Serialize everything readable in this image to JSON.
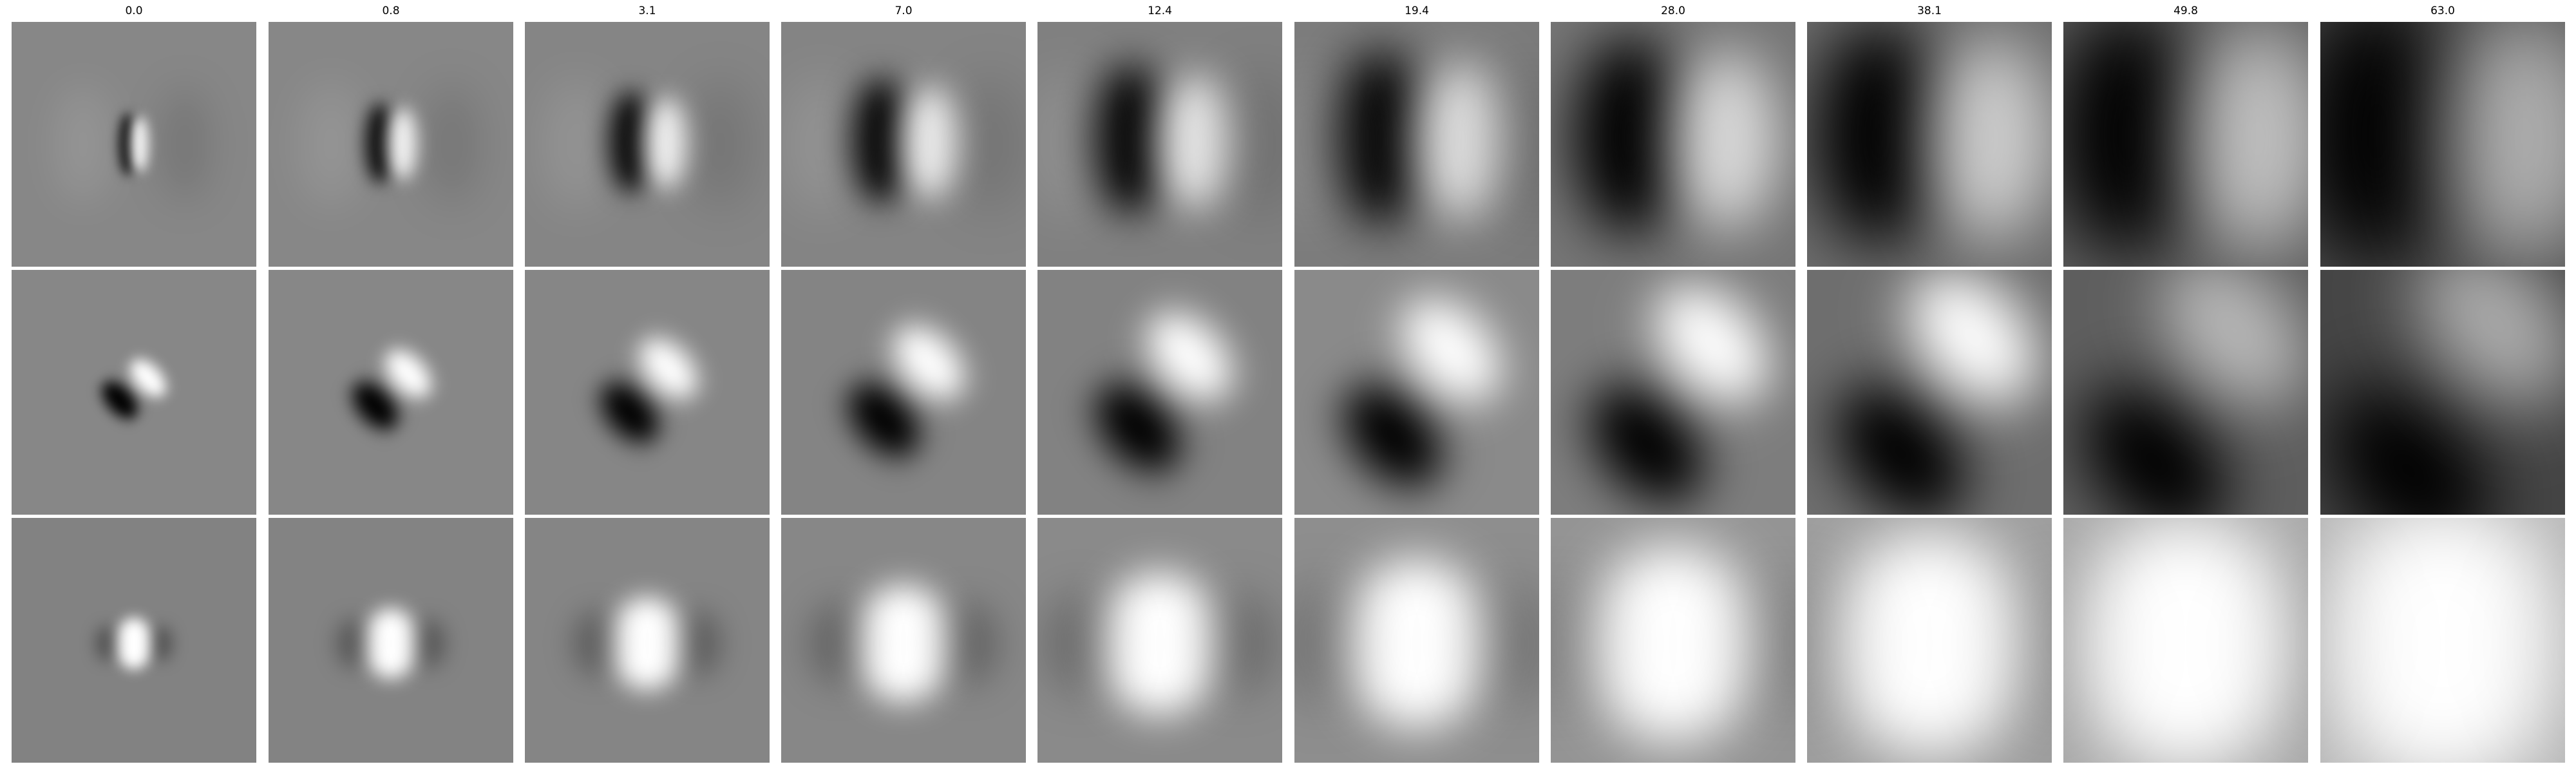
{
  "figure": {
    "column_titles": [
      "0.0",
      "0.8",
      "3.1",
      "7.0",
      "12.4",
      "19.4",
      "28.0",
      "38.1",
      "49.8",
      "63.0"
    ],
    "rows": [
      {
        "pattern": "vertical-dipole",
        "panels": [
          {
            "title": "0.0",
            "background": "#878787"
          },
          {
            "title": "0.8",
            "background": "#878787"
          },
          {
            "title": "3.1",
            "background": "#858585"
          },
          {
            "title": "7.0",
            "background": "#848484"
          },
          {
            "title": "12.4",
            "background": "#808080"
          },
          {
            "title": "19.4",
            "background": "#7b7b7b"
          },
          {
            "title": "28.0",
            "background": "#757575"
          },
          {
            "title": "38.1",
            "background": "#6c6c6c"
          },
          {
            "title": "49.8",
            "background": "#5f5f5f"
          },
          {
            "title": "63.0",
            "background": "#4f4f4f"
          }
        ]
      },
      {
        "pattern": "diagonal-dipole",
        "panels": [
          {
            "title": "0.0",
            "background": "#878787"
          },
          {
            "title": "0.8",
            "background": "#878787"
          },
          {
            "title": "3.1",
            "background": "#868686"
          },
          {
            "title": "7.0",
            "background": "#848484"
          },
          {
            "title": "12.4",
            "background": "#828282"
          },
          {
            "title": "19.4",
            "background": "#8a8a8a"
          },
          {
            "title": "28.0",
            "background": "#7d7d7d"
          },
          {
            "title": "38.1",
            "background": "#6e6e6e"
          },
          {
            "title": "49.8",
            "background": "#5e5e5e"
          },
          {
            "title": "63.0",
            "background": "#454545"
          }
        ]
      },
      {
        "pattern": "central-blob",
        "panels": [
          {
            "title": "0.0",
            "background": "#828282"
          },
          {
            "title": "0.8",
            "background": "#838383"
          },
          {
            "title": "3.1",
            "background": "#858585"
          },
          {
            "title": "7.0",
            "background": "#878787"
          },
          {
            "title": "12.4",
            "background": "#8a8a8a"
          },
          {
            "title": "19.4",
            "background": "#8e8e8e"
          },
          {
            "title": "28.0",
            "background": "#959595"
          },
          {
            "title": "38.1",
            "background": "#9e9e9e"
          },
          {
            "title": "49.8",
            "background": "#a9a9a9"
          },
          {
            "title": "63.0",
            "background": "#b5b5b5"
          }
        ]
      }
    ]
  }
}
